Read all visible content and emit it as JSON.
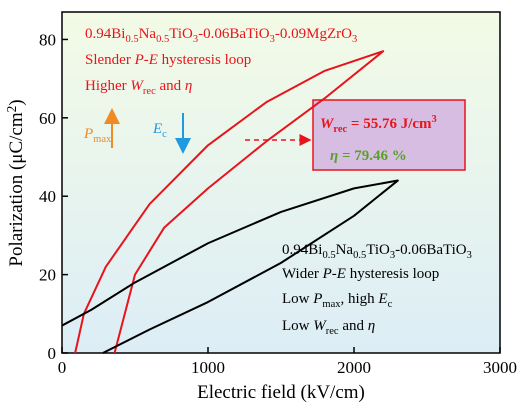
{
  "chart_data": {
    "type": "line",
    "xlabel": "Electric field (kV/cm)",
    "ylabel": [
      "Polarization (μC/cm",
      "2",
      ")"
    ],
    "xlim": [
      0,
      3000
    ],
    "xticks": [
      0,
      1000,
      2000,
      3000
    ],
    "ylim": [
      0,
      87
    ],
    "yticks": [
      0,
      20,
      40,
      60,
      80
    ],
    "series": [
      {
        "color": "#e8141c",
        "x": [
          360,
          500,
          700,
          1000,
          1400,
          1800,
          2200,
          1800,
          1400,
          1000,
          600,
          300,
          150,
          90
        ],
        "values": [
          0,
          20,
          32,
          42,
          54,
          65,
          77,
          72,
          64,
          53,
          38,
          22,
          10,
          0
        ]
      },
      {
        "color": "#000000",
        "x": [
          280,
          600,
          1000,
          1500,
          2000,
          2300,
          2000,
          1500,
          1000,
          500,
          200,
          0
        ],
        "values": [
          0,
          6,
          13,
          23,
          35,
          44,
          42,
          36,
          28,
          18,
          11,
          7
        ]
      }
    ],
    "annotations": [
      [
        "0.94Bi",
        "0.5",
        "Na",
        "0.5",
        "TiO",
        "3",
        "-0.06BaTiO",
        "3",
        "-0.09MgZrO",
        "3"
      ],
      [
        "Slender ",
        "P-E",
        " hysteresis loop"
      ],
      [
        "Higher ",
        "W",
        "rec",
        " and ",
        "η"
      ],
      [
        "P",
        "max"
      ],
      [
        "E",
        "c"
      ],
      [
        "W",
        "rec",
        " = 55.76 J/cm",
        "3"
      ],
      [
        "η",
        "   = 79.46 %"
      ],
      [
        "0.94Bi",
        "0.5",
        "Na",
        "0.5",
        "TiO",
        "3",
        "-0.06BaTiO",
        "3"
      ],
      [
        "Wider ",
        "P-E",
        " hysteresis loop"
      ],
      [
        "Low ",
        "P",
        "max",
        ", high ",
        "E",
        "c"
      ],
      [
        "Low ",
        "W",
        "rec",
        " and ",
        "η"
      ]
    ]
  }
}
